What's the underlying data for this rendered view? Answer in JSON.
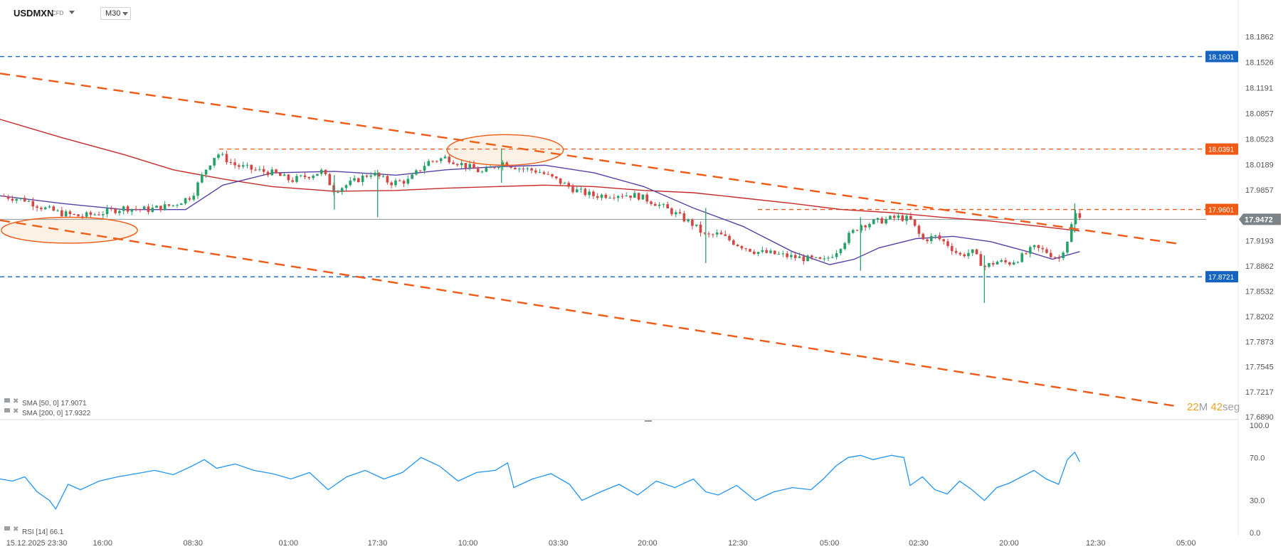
{
  "header": {
    "symbol": "USDMXN",
    "instrument_type": "CFD",
    "timeframe": "M30"
  },
  "colors": {
    "bull": "#26a269",
    "bear": "#d64541",
    "sma50": "#5b3fa8",
    "sma200": "#c92a2a",
    "trend": "#f05a14",
    "resistance": "#f05a14",
    "support": "#1565c0",
    "rsi": "#2196f3",
    "price_tag": "#7b8288"
  },
  "countdown": {
    "minutes": "22",
    "m_unit": "M",
    "seconds": "42",
    "s_unit": "seg"
  },
  "indicators": {
    "sma50_label": "SMA [50, 0] 17.9071",
    "sma200_label": "SMA [200, 0] 17.9322",
    "rsi_label": "RSI [14] 66.1"
  },
  "chart_data": [
    {
      "type": "candlestick",
      "title": "USDMXN CFD M30",
      "y_axis_ticks": [
        18.1862,
        18.1526,
        18.1191,
        18.0857,
        18.0523,
        18.0189,
        17.9857,
        17.9193,
        17.8862,
        17.8532,
        17.8202,
        17.7873,
        17.7545,
        17.7217,
        17.689
      ],
      "ylim": [
        17.689,
        18.2155
      ],
      "x_tick_labels": [
        "15.12.2025  23:30",
        "16:00",
        "08:30",
        "01:00",
        "17:30",
        "10:00",
        "03:30",
        "20:00",
        "12:30",
        "05:00",
        "02:30",
        "20:00",
        "12:30",
        "05:00"
      ],
      "current_price": 17.9472,
      "levels": [
        {
          "name": "upper resistance",
          "value": 18.1601,
          "label": "18.1601",
          "color": "#1565c0"
        },
        {
          "name": "resistance",
          "value": 18.0391,
          "label": "18.0391",
          "color": "#f05a14"
        },
        {
          "name": "near resistance",
          "value": 17.9601,
          "label": "17.9601",
          "color": "#f05a14"
        },
        {
          "name": "support",
          "value": 17.8721,
          "label": "17.8721",
          "color": "#1565c0"
        }
      ],
      "trendlines": [
        {
          "from": [
            0,
            18.138
          ],
          "to": [
            1,
            17.904
          ]
        },
        {
          "from": [
            0,
            17.946
          ],
          "to": [
            1,
            17.69
          ]
        }
      ],
      "highlight_zones": [
        {
          "center_x": 0.056,
          "center_y": 17.933,
          "rx": 0.055,
          "ry": 0.017
        },
        {
          "center_x": 0.408,
          "center_y": 18.038,
          "rx": 0.047,
          "ry": 0.02
        }
      ],
      "close_path": [
        [
          0.0,
          17.978
        ],
        [
          0.02,
          17.973
        ],
        [
          0.035,
          17.962
        ],
        [
          0.05,
          17.955
        ],
        [
          0.065,
          17.951
        ],
        [
          0.08,
          17.955
        ],
        [
          0.1,
          17.962
        ],
        [
          0.12,
          17.96
        ],
        [
          0.14,
          17.966
        ],
        [
          0.155,
          17.978
        ],
        [
          0.165,
          18.01
        ],
        [
          0.175,
          18.034
        ],
        [
          0.19,
          18.018
        ],
        [
          0.205,
          18.012
        ],
        [
          0.22,
          18.008
        ],
        [
          0.235,
          17.998
        ],
        [
          0.25,
          18.005
        ],
        [
          0.26,
          18.01
        ],
        [
          0.27,
          17.985
        ],
        [
          0.285,
          17.996
        ],
        [
          0.3,
          18.008
        ],
        [
          0.315,
          17.995
        ],
        [
          0.33,
          17.998
        ],
        [
          0.345,
          18.022
        ],
        [
          0.36,
          18.028
        ],
        [
          0.375,
          18.018
        ],
        [
          0.39,
          18.008
        ],
        [
          0.405,
          18.022
        ],
        [
          0.42,
          18.014
        ],
        [
          0.435,
          18.01
        ],
        [
          0.45,
          17.998
        ],
        [
          0.465,
          17.985
        ],
        [
          0.48,
          17.978
        ],
        [
          0.5,
          17.98
        ],
        [
          0.515,
          17.978
        ],
        [
          0.53,
          17.968
        ],
        [
          0.545,
          17.955
        ],
        [
          0.56,
          17.94
        ],
        [
          0.57,
          17.925
        ],
        [
          0.58,
          17.928
        ],
        [
          0.595,
          17.915
        ],
        [
          0.61,
          17.905
        ],
        [
          0.625,
          17.902
        ],
        [
          0.64,
          17.898
        ],
        [
          0.655,
          17.895
        ],
        [
          0.665,
          17.892
        ],
        [
          0.675,
          17.905
        ],
        [
          0.685,
          17.925
        ],
        [
          0.695,
          17.94
        ],
        [
          0.71,
          17.945
        ],
        [
          0.725,
          17.95
        ],
        [
          0.735,
          17.947
        ],
        [
          0.745,
          17.92
        ],
        [
          0.755,
          17.925
        ],
        [
          0.765,
          17.915
        ],
        [
          0.775,
          17.9
        ],
        [
          0.785,
          17.905
        ],
        [
          0.795,
          17.885
        ],
        [
          0.805,
          17.892
        ],
        [
          0.815,
          17.89
        ],
        [
          0.825,
          17.898
        ],
        [
          0.835,
          17.91
        ],
        [
          0.845,
          17.905
        ],
        [
          0.855,
          17.895
        ],
        [
          0.862,
          17.92
        ],
        [
          0.868,
          17.955
        ],
        [
          0.872,
          17.948
        ]
      ],
      "spikes": [
        {
          "x": 0.27,
          "low": 17.96,
          "high": 18.005
        },
        {
          "x": 0.305,
          "low": 17.95,
          "high": 18.012
        },
        {
          "x": 0.405,
          "low": 17.995,
          "high": 18.04
        },
        {
          "x": 0.57,
          "low": 17.89,
          "high": 17.962
        },
        {
          "x": 0.695,
          "low": 17.88,
          "high": 17.95
        },
        {
          "x": 0.795,
          "low": 17.838,
          "high": 17.9
        },
        {
          "x": 0.868,
          "low": 17.93,
          "high": 17.968
        }
      ],
      "sma50_path": [
        [
          0.0,
          17.978
        ],
        [
          0.05,
          17.968
        ],
        [
          0.1,
          17.96
        ],
        [
          0.15,
          17.96
        ],
        [
          0.18,
          17.992
        ],
        [
          0.22,
          18.008
        ],
        [
          0.27,
          18.01
        ],
        [
          0.32,
          18.005
        ],
        [
          0.36,
          18.012
        ],
        [
          0.4,
          18.016
        ],
        [
          0.44,
          18.018
        ],
        [
          0.48,
          18.008
        ],
        [
          0.52,
          17.99
        ],
        [
          0.56,
          17.962
        ],
        [
          0.6,
          17.938
        ],
        [
          0.64,
          17.905
        ],
        [
          0.67,
          17.888
        ],
        [
          0.69,
          17.895
        ],
        [
          0.71,
          17.91
        ],
        [
          0.74,
          17.922
        ],
        [
          0.77,
          17.925
        ],
        [
          0.8,
          17.918
        ],
        [
          0.83,
          17.905
        ],
        [
          0.85,
          17.895
        ],
        [
          0.872,
          17.905
        ]
      ],
      "sma200_path": [
        [
          0.0,
          18.078
        ],
        [
          0.05,
          18.054
        ],
        [
          0.1,
          18.032
        ],
        [
          0.14,
          18.012
        ],
        [
          0.18,
          18.0
        ],
        [
          0.22,
          17.99
        ],
        [
          0.27,
          17.984
        ],
        [
          0.32,
          17.985
        ],
        [
          0.36,
          17.988
        ],
        [
          0.4,
          17.99
        ],
        [
          0.44,
          17.992
        ],
        [
          0.48,
          17.99
        ],
        [
          0.52,
          17.985
        ],
        [
          0.56,
          17.982
        ],
        [
          0.6,
          17.975
        ],
        [
          0.64,
          17.968
        ],
        [
          0.68,
          17.96
        ],
        [
          0.72,
          17.956
        ],
        [
          0.76,
          17.95
        ],
        [
          0.8,
          17.945
        ],
        [
          0.84,
          17.938
        ],
        [
          0.872,
          17.932
        ]
      ]
    },
    {
      "type": "line",
      "series": [
        {
          "name": "RSI [14]"
        }
      ],
      "y_axis_ticks": [
        100.0,
        70.0,
        30.0,
        0.0
      ],
      "ylim": [
        0,
        100
      ],
      "last_value": 66.1,
      "values": [
        [
          0.0,
          50
        ],
        [
          0.01,
          48
        ],
        [
          0.02,
          52
        ],
        [
          0.03,
          38
        ],
        [
          0.04,
          30
        ],
        [
          0.045,
          22
        ],
        [
          0.055,
          45
        ],
        [
          0.065,
          40
        ],
        [
          0.08,
          48
        ],
        [
          0.095,
          52
        ],
        [
          0.11,
          55
        ],
        [
          0.125,
          58
        ],
        [
          0.14,
          54
        ],
        [
          0.155,
          62
        ],
        [
          0.165,
          68
        ],
        [
          0.175,
          60
        ],
        [
          0.19,
          64
        ],
        [
          0.205,
          58
        ],
        [
          0.22,
          55
        ],
        [
          0.235,
          50
        ],
        [
          0.25,
          56
        ],
        [
          0.265,
          40
        ],
        [
          0.28,
          52
        ],
        [
          0.295,
          58
        ],
        [
          0.31,
          50
        ],
        [
          0.325,
          56
        ],
        [
          0.34,
          70
        ],
        [
          0.355,
          62
        ],
        [
          0.37,
          48
        ],
        [
          0.385,
          56
        ],
        [
          0.4,
          58
        ],
        [
          0.41,
          65
        ],
        [
          0.415,
          42
        ],
        [
          0.43,
          50
        ],
        [
          0.445,
          55
        ],
        [
          0.46,
          45
        ],
        [
          0.47,
          30
        ],
        [
          0.485,
          38
        ],
        [
          0.5,
          45
        ],
        [
          0.515,
          35
        ],
        [
          0.53,
          48
        ],
        [
          0.545,
          42
        ],
        [
          0.56,
          50
        ],
        [
          0.57,
          38
        ],
        [
          0.58,
          35
        ],
        [
          0.595,
          44
        ],
        [
          0.61,
          30
        ],
        [
          0.625,
          38
        ],
        [
          0.64,
          42
        ],
        [
          0.655,
          40
        ],
        [
          0.665,
          50
        ],
        [
          0.675,
          62
        ],
        [
          0.685,
          70
        ],
        [
          0.695,
          72
        ],
        [
          0.705,
          68
        ],
        [
          0.72,
          72
        ],
        [
          0.73,
          70
        ],
        [
          0.735,
          44
        ],
        [
          0.745,
          52
        ],
        [
          0.755,
          40
        ],
        [
          0.765,
          36
        ],
        [
          0.775,
          48
        ],
        [
          0.785,
          40
        ],
        [
          0.795,
          30
        ],
        [
          0.805,
          42
        ],
        [
          0.815,
          46
        ],
        [
          0.825,
          52
        ],
        [
          0.835,
          58
        ],
        [
          0.845,
          50
        ],
        [
          0.855,
          45
        ],
        [
          0.862,
          68
        ],
        [
          0.868,
          75
        ],
        [
          0.872,
          66
        ]
      ]
    }
  ]
}
